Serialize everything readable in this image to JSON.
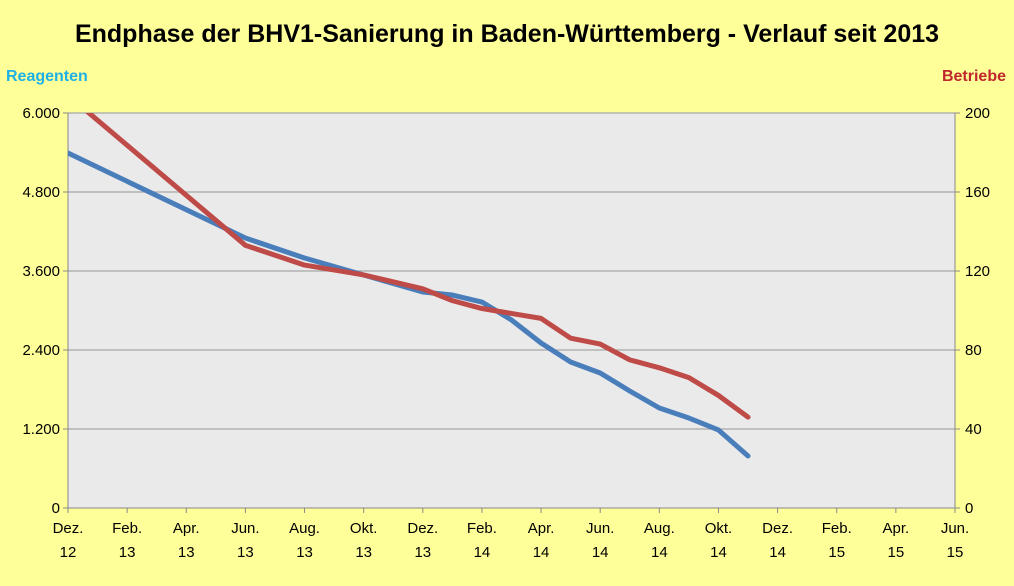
{
  "chart_data": {
    "type": "line",
    "title": "Endphase der BHV1-Sanierung in Baden-Württemberg - Verlauf seit 2013",
    "ylabel_left": "Reagenten",
    "ylabel_right": "Betriebe",
    "x_ticks": [
      [
        "Dez.",
        "12"
      ],
      [
        "Feb.",
        "13"
      ],
      [
        "Apr.",
        "13"
      ],
      [
        "Jun.",
        "13"
      ],
      [
        "Aug.",
        "13"
      ],
      [
        "Okt.",
        "13"
      ],
      [
        "Dez.",
        "13"
      ],
      [
        "Feb.",
        "14"
      ],
      [
        "Apr.",
        "14"
      ],
      [
        "Jun.",
        "14"
      ],
      [
        "Aug.",
        "14"
      ],
      [
        "Okt.",
        "14"
      ],
      [
        "Dez.",
        "14"
      ],
      [
        "Feb.",
        "15"
      ],
      [
        "Apr.",
        "15"
      ],
      [
        "Jun.",
        "15"
      ]
    ],
    "x_range_months": [
      0,
      30
    ],
    "y_left": {
      "range": [
        0,
        6000
      ],
      "ticks": [
        "0",
        "1.200",
        "2.400",
        "3.600",
        "4.800",
        "6.000"
      ]
    },
    "y_right": {
      "range": [
        0,
        200
      ],
      "ticks": [
        "0",
        "40",
        "80",
        "120",
        "160",
        "200"
      ]
    },
    "grid": true,
    "series": [
      {
        "name": "Reagenten",
        "axis": "left",
        "color": "#4a7ebb",
        "x": [
          0,
          6,
          8,
          10,
          12,
          13,
          14,
          15,
          16,
          17,
          18,
          19,
          20,
          21,
          22,
          23
        ],
        "y": [
          5392,
          4101,
          3797,
          3539,
          3281,
          3235,
          3129,
          2856,
          2506,
          2218,
          2051,
          1777,
          1519,
          1367,
          1185,
          790
        ]
      },
      {
        "name": "Betriebe",
        "axis": "right",
        "color": "#be4b48",
        "x": [
          0,
          6,
          8,
          10,
          12,
          13,
          14,
          16,
          17,
          18,
          19,
          20,
          21,
          22,
          23
        ],
        "y": [
          209,
          133,
          123,
          118,
          111,
          105,
          101,
          96,
          86,
          83,
          75,
          71,
          66,
          57,
          46
        ]
      }
    ]
  },
  "colors": {
    "background": "#ffff99",
    "plot": "#eaeaea",
    "left_label": "#1fb1e6",
    "right_label": "#c0272d"
  }
}
